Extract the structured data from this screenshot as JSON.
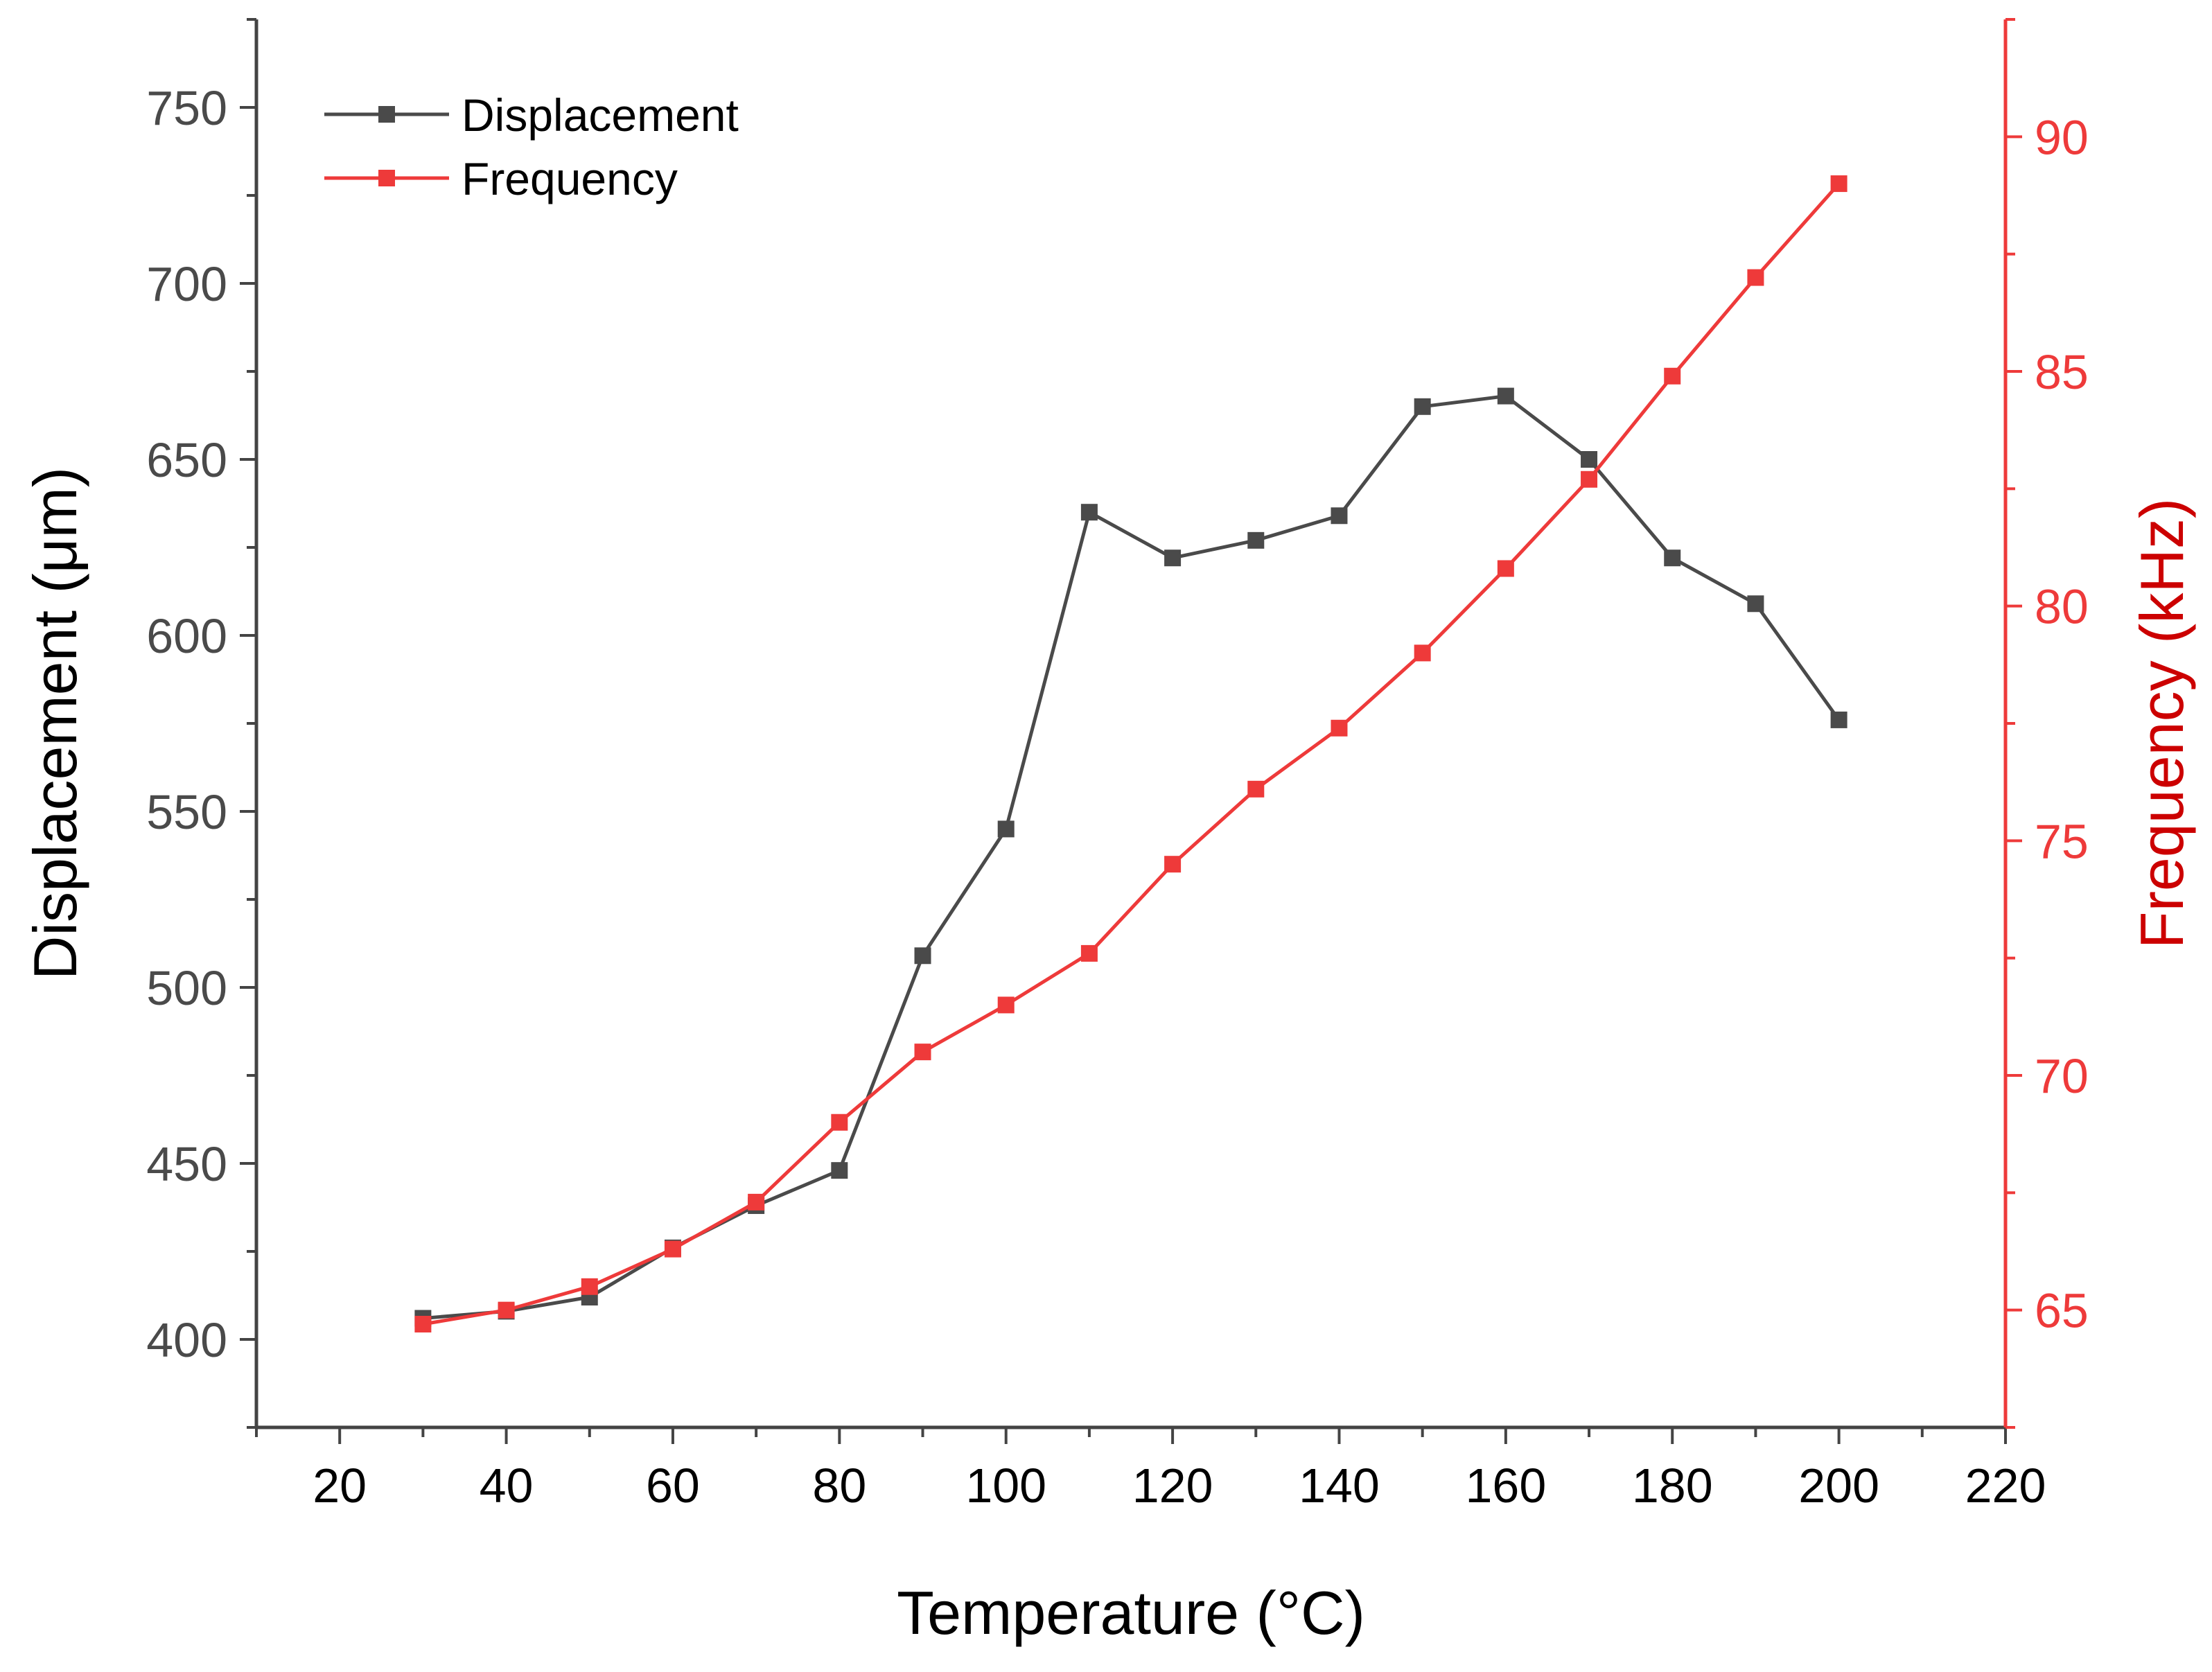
{
  "chart_data": {
    "type": "line",
    "title": "",
    "xlabel": "Temperature (°C)",
    "xlim": [
      10,
      220
    ],
    "xticks": [
      20,
      40,
      60,
      80,
      100,
      120,
      140,
      160,
      180,
      200,
      220
    ],
    "y_left": {
      "label": "Displacement (μm)",
      "lim": [
        375,
        775
      ],
      "ticks": [
        400,
        450,
        500,
        550,
        600,
        650,
        700,
        750
      ],
      "color": "#4a4a4a",
      "label_color": "#000000"
    },
    "y_right": {
      "label": "Frequency (kHz)",
      "lim": [
        62.5,
        92.5
      ],
      "ticks": [
        65,
        70,
        75,
        80,
        85,
        90
      ],
      "color": "#ee3a3a",
      "label_color": "#cc0000"
    },
    "legend": {
      "position": "top-left"
    },
    "series": [
      {
        "name": "Displacement",
        "axis": "left",
        "color": "#4a4a4a",
        "marker": "square",
        "x": [
          30,
          40,
          50,
          60,
          70,
          80,
          90,
          100,
          110,
          120,
          130,
          140,
          150,
          160,
          170,
          180,
          190,
          200
        ],
        "values": [
          406,
          408,
          412,
          426,
          438,
          448,
          509,
          545,
          635,
          622,
          627,
          634,
          665,
          668,
          650,
          622,
          609,
          576
        ]
      },
      {
        "name": "Frequency",
        "axis": "right",
        "color": "#ee3a3a",
        "marker": "square",
        "x": [
          30,
          40,
          50,
          60,
          70,
          80,
          90,
          100,
          110,
          120,
          130,
          140,
          150,
          160,
          170,
          180,
          190,
          200
        ],
        "values": [
          64.7,
          65.0,
          65.5,
          66.3,
          67.3,
          69.0,
          70.5,
          71.5,
          72.6,
          74.5,
          76.1,
          77.4,
          79.0,
          80.8,
          82.7,
          84.9,
          87.0,
          89.0
        ]
      }
    ]
  }
}
